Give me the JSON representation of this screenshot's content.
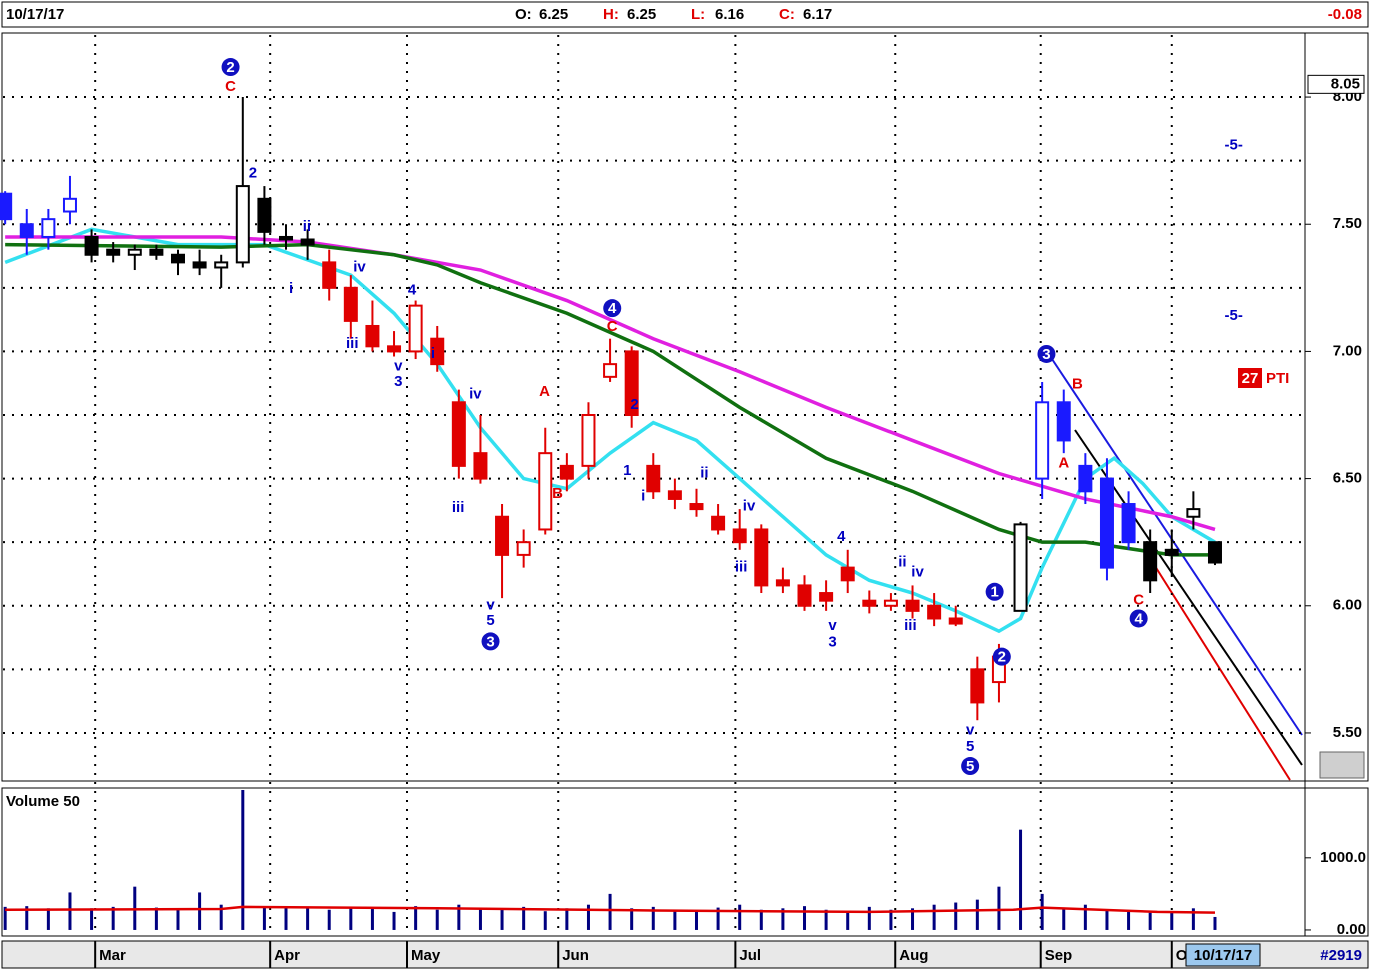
{
  "chart_data": [
    {
      "type": "candlestick",
      "header": {
        "date": "10/17/17",
        "ohlc": [
          {
            "label": "O:",
            "value": 6.25
          },
          {
            "label": "H:",
            "value": 6.25
          },
          {
            "label": "L:",
            "value": 6.16
          },
          {
            "label": "C:",
            "value": 6.17
          }
        ],
        "change": -0.08
      },
      "x": [
        0,
        3,
        6,
        9,
        12,
        15,
        18,
        21,
        24,
        27,
        30,
        33,
        36,
        39,
        42,
        45,
        48,
        51,
        54,
        57,
        60,
        63,
        66,
        69,
        72,
        75,
        78,
        81,
        84,
        87,
        90,
        93,
        96,
        99,
        102,
        105,
        108,
        111,
        114,
        117,
        120,
        123,
        126,
        129,
        132,
        135,
        138,
        141,
        144,
        147,
        150,
        153,
        156,
        159,
        162,
        165,
        168
      ],
      "open": [
        7.62,
        7.5,
        7.45,
        7.55,
        7.45,
        7.4,
        7.38,
        7.4,
        7.38,
        7.35,
        7.33,
        7.35,
        7.6,
        7.45,
        7.44,
        7.35,
        7.25,
        7.1,
        7.02,
        7.0,
        7.05,
        6.8,
        6.6,
        6.35,
        6.2,
        6.3,
        6.55,
        6.55,
        6.9,
        7.0,
        6.55,
        6.45,
        6.4,
        6.35,
        6.3,
        6.3,
        6.1,
        6.08,
        6.05,
        6.15,
        6.02,
        6.0,
        6.02,
        6.0,
        5.95,
        5.75,
        5.7,
        5.98,
        6.5,
        6.8,
        6.55,
        6.5,
        6.4,
        6.25,
        6.22,
        6.35,
        6.25
      ],
      "high": [
        7.63,
        7.56,
        7.56,
        7.69,
        7.48,
        7.43,
        7.42,
        7.42,
        7.4,
        7.4,
        7.38,
        8.0,
        7.65,
        7.5,
        7.48,
        7.4,
        7.3,
        7.2,
        7.08,
        7.2,
        7.1,
        6.85,
        6.75,
        6.4,
        6.3,
        6.7,
        6.6,
        6.8,
        7.05,
        7.02,
        6.6,
        6.5,
        6.46,
        6.4,
        6.38,
        6.32,
        6.15,
        6.12,
        6.1,
        6.22,
        6.06,
        6.05,
        6.08,
        6.05,
        6.0,
        5.8,
        5.85,
        6.33,
        6.88,
        6.85,
        6.6,
        6.58,
        6.45,
        6.3,
        6.3,
        6.45,
        6.25
      ],
      "low": [
        7.5,
        7.38,
        7.4,
        7.5,
        7.35,
        7.35,
        7.32,
        7.36,
        7.3,
        7.3,
        7.25,
        7.33,
        7.42,
        7.4,
        7.36,
        7.2,
        7.05,
        7.0,
        6.98,
        6.97,
        6.92,
        6.5,
        6.48,
        6.03,
        6.15,
        6.28,
        6.45,
        6.5,
        6.88,
        6.7,
        6.42,
        6.38,
        6.35,
        6.28,
        6.22,
        6.05,
        6.05,
        5.98,
        5.98,
        6.05,
        5.97,
        5.98,
        5.95,
        5.92,
        5.92,
        5.55,
        5.62,
        5.98,
        6.42,
        6.6,
        6.4,
        6.1,
        6.22,
        6.05,
        6.12,
        6.3,
        6.16
      ],
      "close": [
        7.52,
        7.45,
        7.52,
        7.6,
        7.38,
        7.38,
        7.4,
        7.38,
        7.35,
        7.33,
        7.35,
        7.65,
        7.47,
        7.44,
        7.42,
        7.25,
        7.12,
        7.02,
        7.0,
        7.18,
        6.95,
        6.55,
        6.5,
        6.2,
        6.25,
        6.6,
        6.5,
        6.75,
        6.95,
        6.75,
        6.45,
        6.42,
        6.38,
        6.3,
        6.25,
        6.08,
        6.08,
        6.0,
        6.02,
        6.1,
        6.0,
        6.02,
        5.98,
        5.95,
        5.93,
        5.62,
        5.8,
        6.32,
        6.8,
        6.65,
        6.45,
        6.15,
        6.25,
        6.1,
        6.2,
        6.38,
        6.17
      ],
      "colors": [
        "#1a1aff",
        "#1a1aff",
        "#1a1aff",
        "#1a1aff",
        "#000000",
        "#000000",
        "#000000",
        "#000000",
        "#000000",
        "#000000",
        "#000000",
        "#000000",
        "#000000",
        "#000000",
        "#000000",
        "#e00000",
        "#e00000",
        "#e00000",
        "#e00000",
        "#e00000",
        "#e00000",
        "#e00000",
        "#e00000",
        "#e00000",
        "#e00000",
        "#e00000",
        "#e00000",
        "#e00000",
        "#e00000",
        "#e00000",
        "#e00000",
        "#e00000",
        "#e00000",
        "#e00000",
        "#e00000",
        "#e00000",
        "#e00000",
        "#e00000",
        "#e00000",
        "#e00000",
        "#e00000",
        "#e00000",
        "#e00000",
        "#e00000",
        "#e00000",
        "#e00000",
        "#e00000",
        "#000000",
        "#1a1aff",
        "#1a1aff",
        "#1a1aff",
        "#1a1aff",
        "#1a1aff",
        "#000000",
        "#000000",
        "#000000",
        "#000000"
      ],
      "lines": [
        {
          "color": "#33e0f0",
          "x": [
            0,
            12,
            24,
            36,
            48,
            54,
            60,
            66,
            72,
            78,
            84,
            90,
            96,
            102,
            108,
            114,
            120,
            126,
            132,
            138,
            141,
            144,
            150,
            154,
            158,
            162,
            168
          ],
          "values": [
            7.35,
            7.48,
            7.42,
            7.42,
            7.3,
            7.15,
            6.95,
            6.7,
            6.5,
            6.46,
            6.6,
            6.72,
            6.65,
            6.5,
            6.35,
            6.2,
            6.1,
            6.05,
            5.98,
            5.9,
            5.95,
            6.15,
            6.5,
            6.58,
            6.48,
            6.35,
            6.25
          ]
        },
        {
          "color": "#e020e0",
          "x": [
            0,
            30,
            42,
            54,
            66,
            78,
            90,
            102,
            114,
            126,
            138,
            150,
            162,
            168
          ],
          "values": [
            7.45,
            7.45,
            7.43,
            7.38,
            7.32,
            7.2,
            7.05,
            6.92,
            6.78,
            6.65,
            6.52,
            6.42,
            6.35,
            6.3
          ]
        },
        {
          "color": "#107010",
          "x": [
            0,
            30,
            42,
            54,
            60,
            66,
            78,
            90,
            102,
            114,
            126,
            138,
            144,
            150,
            162,
            168
          ],
          "values": [
            7.42,
            7.41,
            7.42,
            7.38,
            7.34,
            7.27,
            7.15,
            7.0,
            6.78,
            6.58,
            6.45,
            6.3,
            6.25,
            6.25,
            6.2,
            6.2
          ]
        }
      ],
      "annotations": [
        {
          "text": "2",
          "x": 31.3,
          "y": 8.118,
          "color": "#0000c0",
          "circled": true
        },
        {
          "text": "C",
          "x": 31.3,
          "y": 8.04,
          "color": "#e00000",
          "circled": false
        },
        {
          "text": "2",
          "x": 34.4,
          "y": 7.7,
          "color": "#0000c0",
          "circled": false
        },
        {
          "text": "ii",
          "x": 41.9,
          "y": 7.49,
          "color": "#0000c0",
          "circled": false
        },
        {
          "text": "i",
          "x": 39.7,
          "y": 7.245,
          "color": "#0000c0",
          "circled": false
        },
        {
          "text": "iv",
          "x": 49.2,
          "y": 7.33,
          "color": "#0000c0",
          "circled": false
        },
        {
          "text": "iii",
          "x": 48.2,
          "y": 7.03,
          "color": "#0000c0",
          "circled": false
        },
        {
          "text": "4",
          "x": 56.5,
          "y": 7.24,
          "color": "#0000c0",
          "circled": false
        },
        {
          "text": "v",
          "x": 54.6,
          "y": 6.94,
          "color": "#0000c0",
          "circled": false
        },
        {
          "text": "3",
          "x": 54.6,
          "y": 6.88,
          "color": "#0000c0",
          "circled": false
        },
        {
          "text": "i",
          "x": 59.4,
          "y": 6.99,
          "color": "#0000c0",
          "circled": false
        },
        {
          "text": "iv",
          "x": 65.3,
          "y": 6.83,
          "color": "#0000c0",
          "circled": false
        },
        {
          "text": "iii",
          "x": 62.9,
          "y": 6.385,
          "color": "#0000c0",
          "circled": false
        },
        {
          "text": "v",
          "x": 67.4,
          "y": 6.0,
          "color": "#0000c0",
          "circled": false
        },
        {
          "text": "5",
          "x": 67.4,
          "y": 5.94,
          "color": "#0000c0",
          "circled": false
        },
        {
          "text": "3",
          "x": 67.4,
          "y": 5.86,
          "color": "#0000c0",
          "circled": true
        },
        {
          "text": "A",
          "x": 74.9,
          "y": 6.84,
          "color": "#e00000",
          "circled": false
        },
        {
          "text": "B",
          "x": 76.7,
          "y": 6.44,
          "color": "#e00000",
          "circled": false
        },
        {
          "text": "4",
          "x": 84.3,
          "y": 7.17,
          "color": "#0000c0",
          "circled": true
        },
        {
          "text": "C",
          "x": 84.3,
          "y": 7.096,
          "color": "#e00000",
          "circled": false
        },
        {
          "text": "2",
          "x": 87.4,
          "y": 6.79,
          "color": "#0000c0",
          "circled": false
        },
        {
          "text": "1",
          "x": 86.4,
          "y": 6.53,
          "color": "#0000c0",
          "circled": false
        },
        {
          "text": "i",
          "x": 88.6,
          "y": 6.43,
          "color": "#0000c0",
          "circled": false
        },
        {
          "text": "ii",
          "x": 97.1,
          "y": 6.52,
          "color": "#0000c0",
          "circled": false
        },
        {
          "text": "iv",
          "x": 103.3,
          "y": 6.39,
          "color": "#0000c0",
          "circled": false
        },
        {
          "text": "iii",
          "x": 102.2,
          "y": 6.15,
          "color": "#0000c0",
          "circled": false
        },
        {
          "text": "4",
          "x": 116.1,
          "y": 6.27,
          "color": "#0000c0",
          "circled": false
        },
        {
          "text": "v",
          "x": 114.9,
          "y": 5.92,
          "color": "#0000c0",
          "circled": false
        },
        {
          "text": "3",
          "x": 114.9,
          "y": 5.855,
          "color": "#0000c0",
          "circled": false
        },
        {
          "text": "ii",
          "x": 124.6,
          "y": 6.17,
          "color": "#0000c0",
          "circled": false
        },
        {
          "text": "iv",
          "x": 126.7,
          "y": 6.13,
          "color": "#0000c0",
          "circled": false
        },
        {
          "text": "iii",
          "x": 125.7,
          "y": 5.92,
          "color": "#0000c0",
          "circled": false
        },
        {
          "text": "v",
          "x": 134.0,
          "y": 5.51,
          "color": "#0000c0",
          "circled": false
        },
        {
          "text": "5",
          "x": 134.0,
          "y": 5.445,
          "color": "#0000c0",
          "circled": false
        },
        {
          "text": "5",
          "x": 134.0,
          "y": 5.37,
          "color": "#0000c0",
          "circled": true
        },
        {
          "text": "1",
          "x": 137.4,
          "y": 6.055,
          "color": "#0000c0",
          "circled": true
        },
        {
          "text": "2",
          "x": 138.4,
          "y": 5.8,
          "color": "#0000c0",
          "circled": true
        },
        {
          "text": "3",
          "x": 144.6,
          "y": 6.99,
          "color": "#0000c0",
          "circled": true
        },
        {
          "text": "B",
          "x": 148.9,
          "y": 6.87,
          "color": "#e00000",
          "circled": false
        },
        {
          "text": "A",
          "x": 147.0,
          "y": 6.56,
          "color": "#e00000",
          "circled": false
        },
        {
          "text": "C",
          "x": 157.4,
          "y": 6.02,
          "color": "#e00000",
          "circled": false
        },
        {
          "text": "4",
          "x": 157.4,
          "y": 5.95,
          "color": "#0000c0",
          "circled": true
        },
        {
          "text": "-5-",
          "x": 170.6,
          "y": 7.81,
          "color": "#0000c0",
          "circled": false
        },
        {
          "text": "-5-",
          "x": 170.6,
          "y": 7.14,
          "color": "#0000c0",
          "circled": false
        }
      ],
      "pti": {
        "score": 27,
        "label": "PTI"
      },
      "price_marker": 8.05,
      "xlim": [
        -0.3,
        180.5
      ],
      "xticks": [
        {
          "value": 12.5,
          "label": "Mar"
        },
        {
          "value": 36.8,
          "label": "Apr"
        },
        {
          "value": 55.8,
          "label": "May"
        },
        {
          "value": 76.8,
          "label": "Jun"
        },
        {
          "value": 101.4,
          "label": "Jul"
        },
        {
          "value": 123.6,
          "label": "Aug"
        },
        {
          "value": 143.8,
          "label": "Sep"
        },
        {
          "value": 162,
          "label": "O"
        }
      ],
      "ylim": [
        5.315,
        8.244
      ],
      "yticks": [
        {
          "value": 5.5,
          "label": "5.50"
        },
        {
          "value": 6.0,
          "label": "6.00"
        },
        {
          "value": 6.5,
          "label": "6.50"
        },
        {
          "value": 7.0,
          "label": "7.00"
        },
        {
          "value": 7.5,
          "label": "7.50"
        },
        {
          "value": 8.0,
          "label": "8.00"
        }
      ],
      "minor_grid": [
        5.75,
        6.25,
        6.75,
        7.25,
        7.75
      ],
      "grid": true,
      "footer_date": "10/17/17",
      "record": "#2919"
    },
    {
      "type": "bar",
      "title": "Volume 50",
      "color": "#000080",
      "x": [
        0,
        3,
        6,
        9,
        12,
        15,
        18,
        21,
        24,
        27,
        30,
        33,
        36,
        39,
        42,
        45,
        48,
        51,
        54,
        57,
        60,
        63,
        66,
        69,
        72,
        75,
        78,
        81,
        84,
        87,
        90,
        93,
        96,
        99,
        102,
        105,
        108,
        111,
        114,
        117,
        120,
        123,
        126,
        129,
        132,
        135,
        138,
        141,
        144,
        147,
        150,
        153,
        156,
        159,
        162,
        165,
        168
      ],
      "values": [
        320,
        330,
        300,
        520,
        300,
        320,
        600,
        310,
        280,
        520,
        350,
        1940,
        320,
        330,
        300,
        280,
        310,
        290,
        250,
        330,
        280,
        350,
        300,
        290,
        320,
        260,
        300,
        350,
        500,
        300,
        320,
        280,
        250,
        310,
        350,
        280,
        300,
        330,
        280,
        260,
        320,
        280,
        300,
        350,
        380,
        420,
        600,
        1390,
        500,
        300,
        350,
        280,
        260,
        240,
        250,
        300,
        180
      ],
      "average": {
        "color": "#e00000",
        "x": [
          0,
          30,
          33,
          60,
          90,
          120,
          140,
          144,
          160,
          168
        ],
        "values": [
          280,
          290,
          320,
          300,
          270,
          250,
          280,
          310,
          250,
          240
        ]
      },
      "ylim": [
        -70,
        1940
      ],
      "yticks": [
        {
          "value": 0,
          "label": "0.00"
        },
        {
          "value": 1000,
          "label": "1000.0"
        }
      ]
    }
  ]
}
